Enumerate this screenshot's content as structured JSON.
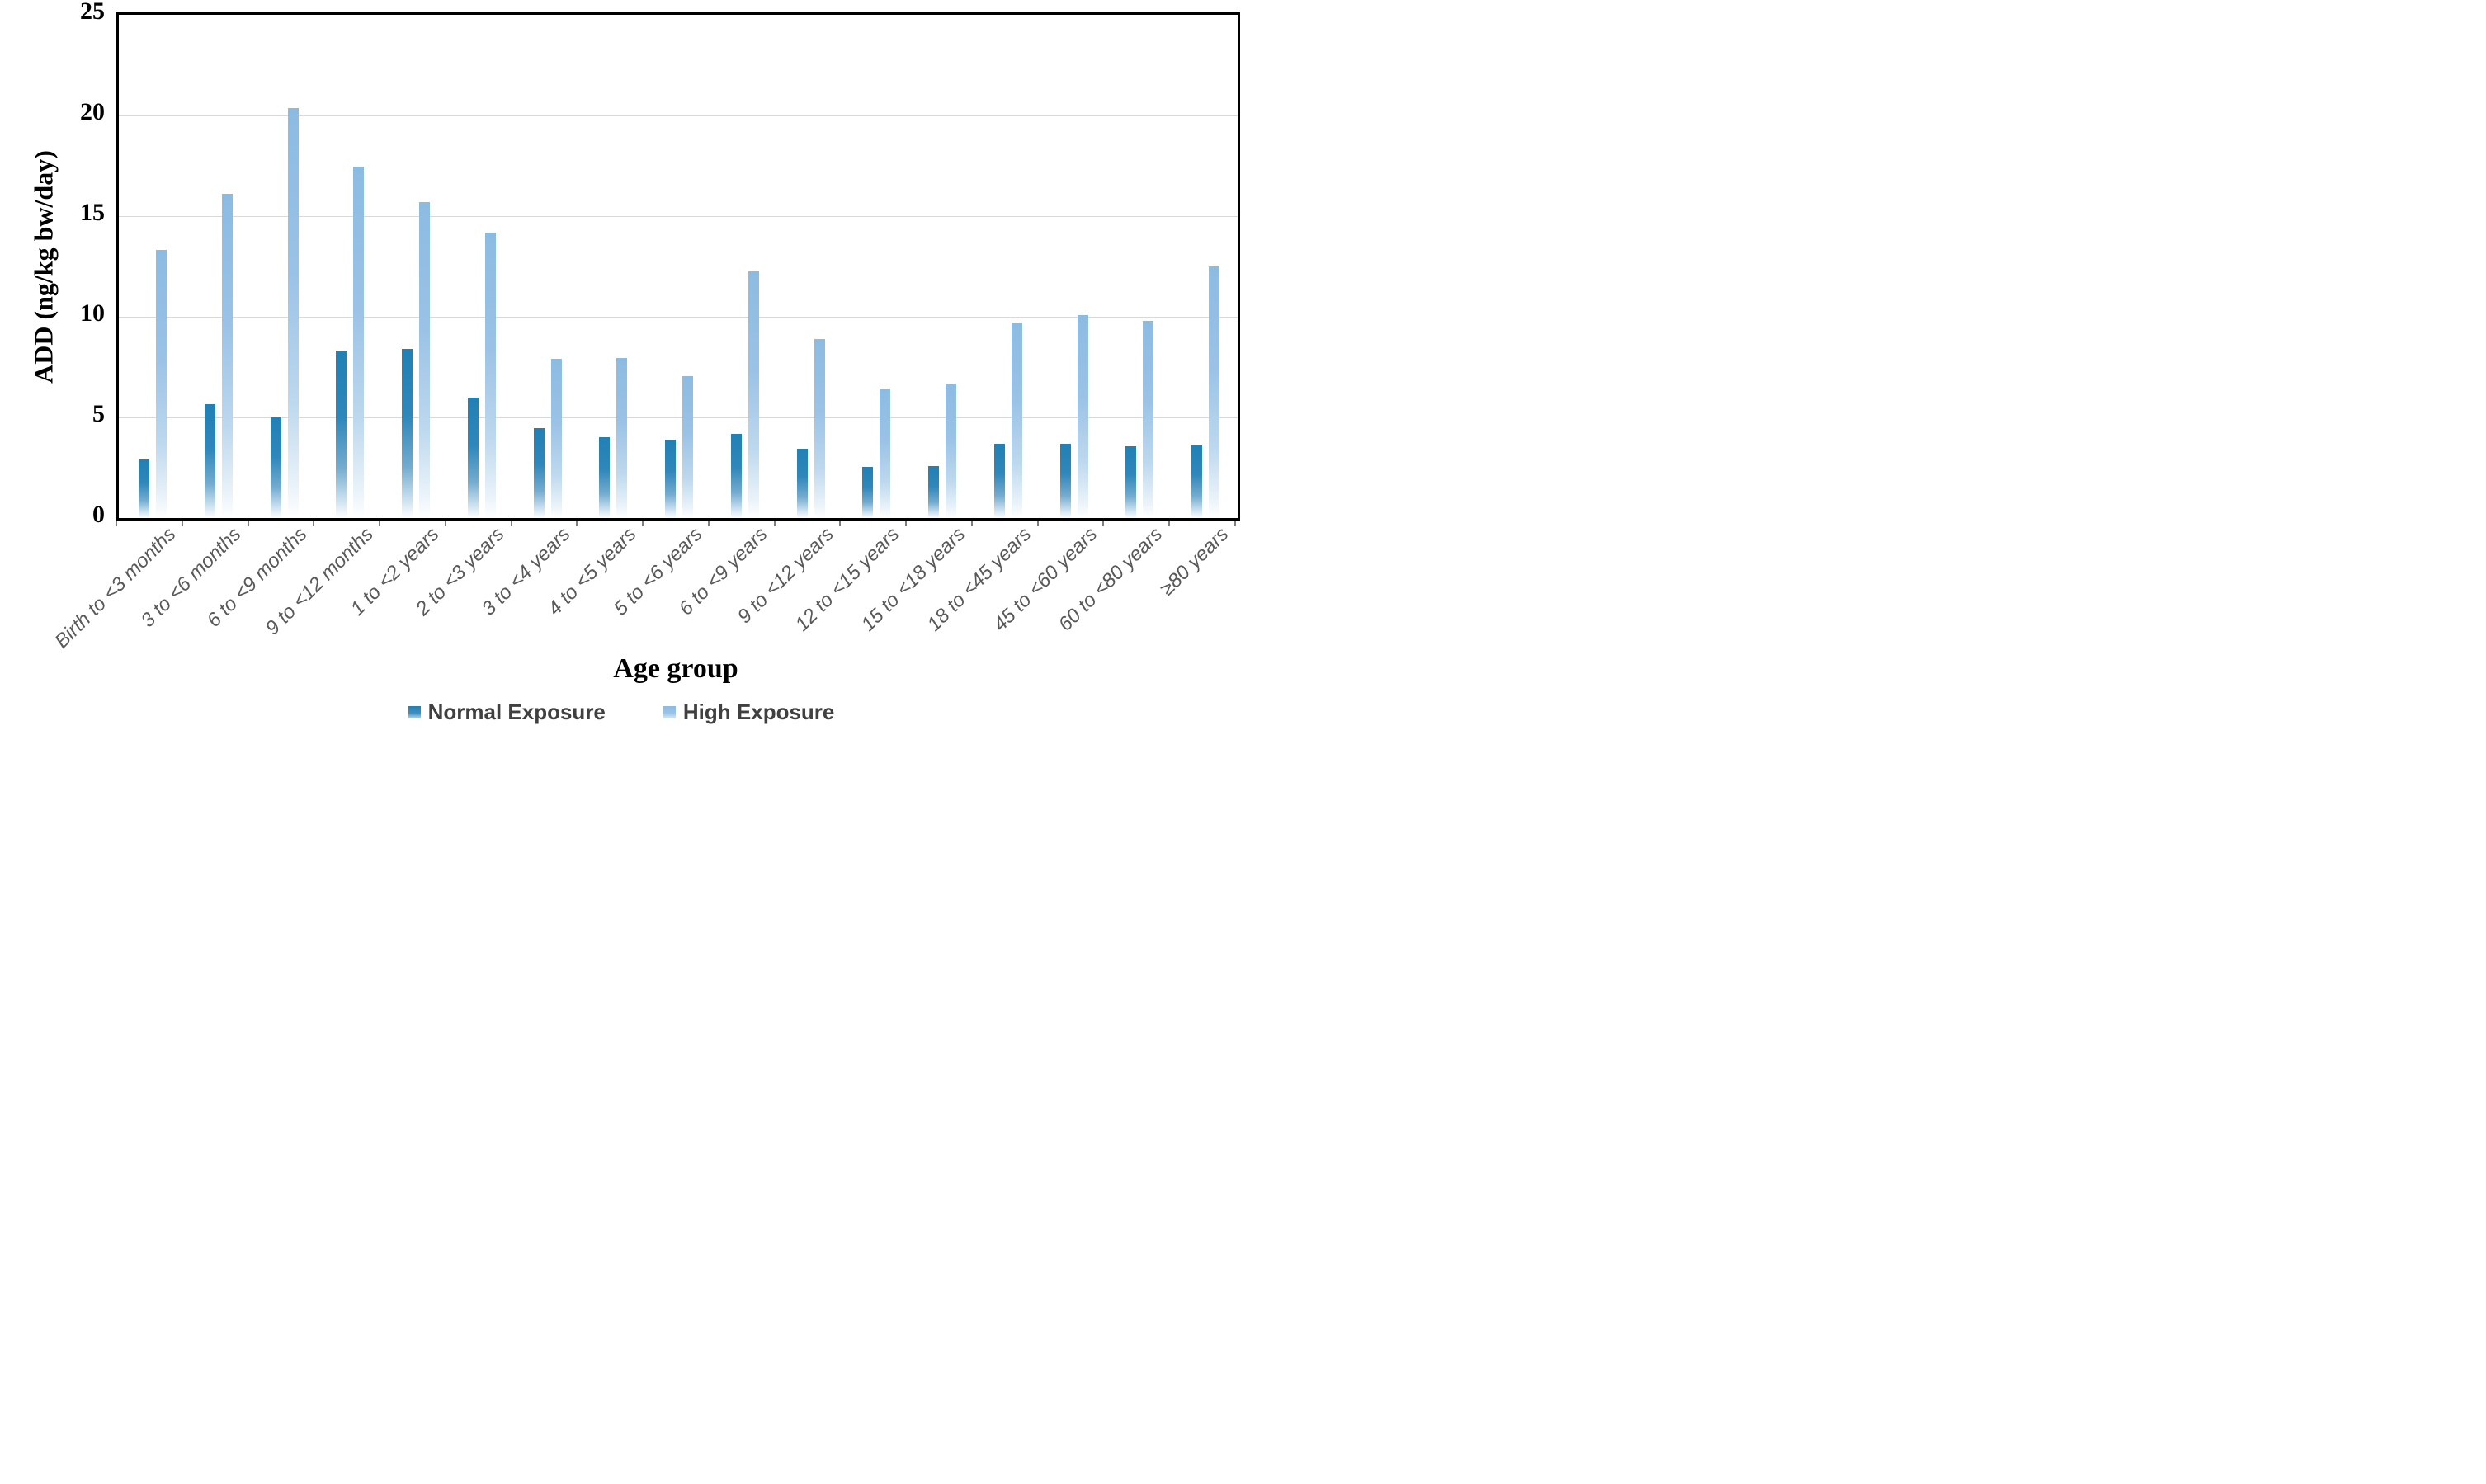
{
  "chart_data": {
    "type": "bar",
    "title": "",
    "xlabel": "Age group",
    "ylabel": "ADD (ng/kg bw/day)",
    "ylim": [
      0,
      25
    ],
    "yticks": [
      0,
      5,
      10,
      15,
      20,
      25
    ],
    "grid": "horizontal-only",
    "legend_position": "bottom-center",
    "categories": [
      "Birth to <3 months",
      "3 to <6 months",
      "6 to <9 months",
      "9 to <12 months",
      "1 to <2 years",
      "2 to <3 years",
      "3 to <4 years",
      "4 to <5 years",
      "5 to <6 years",
      "6 to <9 years",
      "9 to <12 years",
      "12 to <15 years",
      "15 to <18 years",
      "18 to <45 years",
      "45 to <60 years",
      "60 to <80 years",
      "≥80 years"
    ],
    "series": [
      {
        "name": "Normal Exposure",
        "color": "#2e86ba",
        "values": [
          2.9,
          5.65,
          5.05,
          8.3,
          8.4,
          6.0,
          4.45,
          4.0,
          3.9,
          4.2,
          3.45,
          2.55,
          2.6,
          3.7,
          3.7,
          3.55,
          3.6
        ]
      },
      {
        "name": "High Exposure",
        "color": "#9ac2e6",
        "values": [
          13.3,
          16.1,
          20.35,
          17.45,
          15.7,
          14.2,
          7.9,
          7.95,
          7.05,
          12.25,
          8.9,
          6.45,
          6.7,
          9.7,
          10.1,
          9.8,
          12.5
        ]
      }
    ],
    "bar_style": "gradient fading to white at baseline"
  }
}
